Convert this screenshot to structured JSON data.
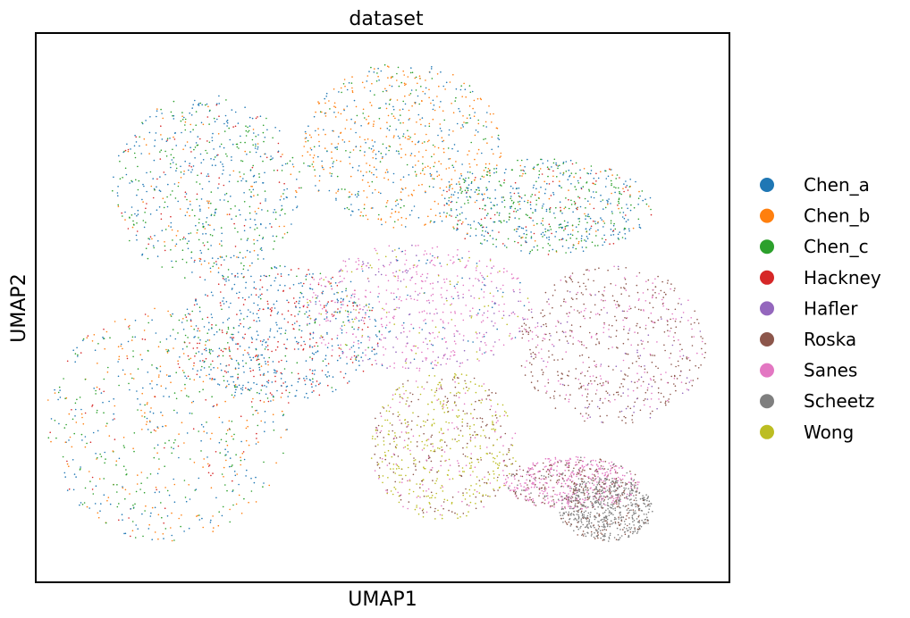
{
  "chart_data": {
    "type": "scatter",
    "title": "dataset",
    "xlabel": "UMAP1",
    "ylabel": "UMAP2",
    "grid": false,
    "ticks": false,
    "xlim": [
      0,
      1
    ],
    "ylim": [
      0,
      1
    ],
    "legend_placement": "right-outside",
    "series": [
      {
        "name": "Chen_a",
        "color": "#1f77b4"
      },
      {
        "name": "Chen_b",
        "color": "#ff7f0e"
      },
      {
        "name": "Chen_c",
        "color": "#2ca02c"
      },
      {
        "name": "Hackney",
        "color": "#d62728"
      },
      {
        "name": "Hafler",
        "color": "#9467bd"
      },
      {
        "name": "Roska",
        "color": "#8c564b"
      },
      {
        "name": "Sanes",
        "color": "#e377c2"
      },
      {
        "name": "Scheetz",
        "color": "#7f7f7f"
      },
      {
        "name": "Wong",
        "color": "#bcbd22"
      }
    ],
    "clusters": [
      {
        "x": [
          0.0,
          0.36
        ],
        "y": [
          0.06,
          0.5
        ],
        "mix": {
          "Chen_a": 3,
          "Chen_b": 3,
          "Chen_c": 3,
          "Hackney": 1
        }
      },
      {
        "x": [
          0.2,
          0.5
        ],
        "y": [
          0.32,
          0.58
        ],
        "mix": {
          "Chen_a": 6,
          "Hackney": 3,
          "Chen_c": 1
        }
      },
      {
        "x": [
          0.1,
          0.38
        ],
        "y": [
          0.55,
          0.9
        ],
        "mix": {
          "Chen_a": 5,
          "Chen_c": 3,
          "Chen_b": 1,
          "Hackney": 1
        }
      },
      {
        "x": [
          0.38,
          0.68
        ],
        "y": [
          0.65,
          0.96
        ],
        "mix": {
          "Chen_b": 5,
          "Chen_a": 3,
          "Chen_c": 2
        }
      },
      {
        "x": [
          0.58,
          0.9
        ],
        "y": [
          0.6,
          0.78
        ],
        "mix": {
          "Chen_c": 4,
          "Chen_a": 4,
          "Chen_b": 1,
          "Hackney": 1
        }
      },
      {
        "x": [
          0.38,
          0.72
        ],
        "y": [
          0.38,
          0.62
        ],
        "mix": {
          "Sanes": 6,
          "Hafler": 2,
          "Chen_a": 1,
          "Wong": 1
        }
      },
      {
        "x": [
          0.48,
          0.7
        ],
        "y": [
          0.1,
          0.38
        ],
        "mix": {
          "Wong": 5,
          "Roska": 3,
          "Sanes": 2
        }
      },
      {
        "x": [
          0.7,
          0.98
        ],
        "y": [
          0.28,
          0.58
        ],
        "mix": {
          "Roska": 6,
          "Sanes": 3,
          "Hafler": 1
        }
      },
      {
        "x": [
          0.68,
          0.88
        ],
        "y": [
          0.12,
          0.22
        ],
        "mix": {
          "Sanes": 6,
          "Roska": 3,
          "Scheetz": 1
        }
      },
      {
        "x": [
          0.76,
          0.9
        ],
        "y": [
          0.06,
          0.18
        ],
        "mix": {
          "Scheetz": 8,
          "Roska": 2
        }
      }
    ]
  }
}
